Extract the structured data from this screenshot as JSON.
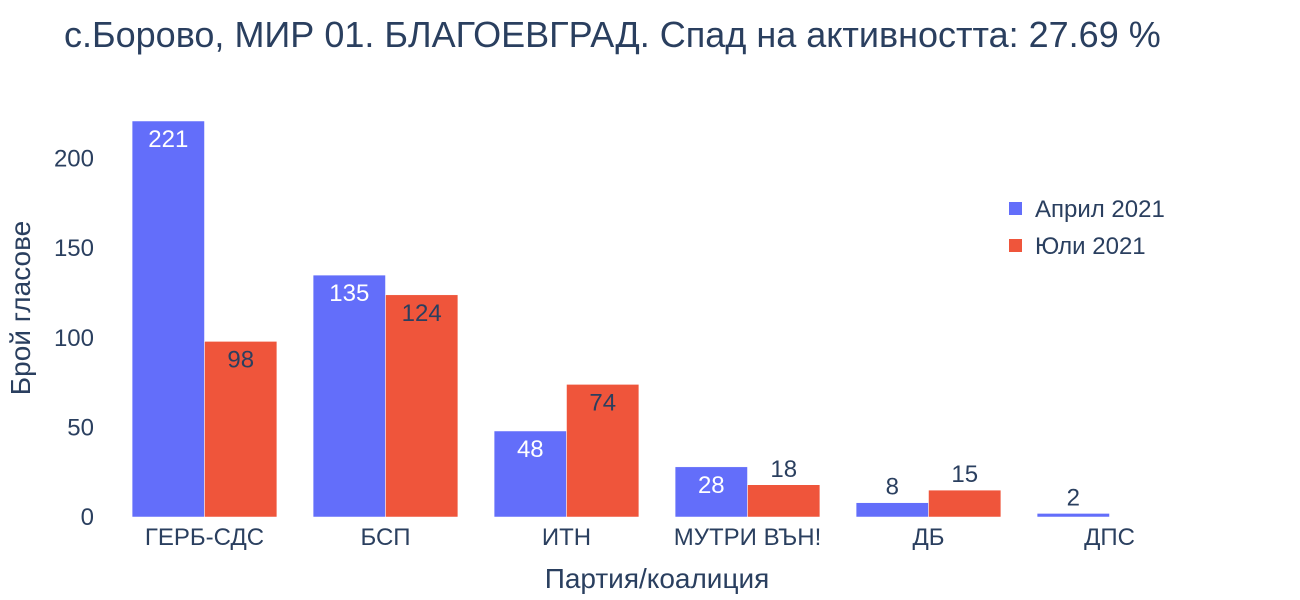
{
  "chart_data": {
    "type": "bar",
    "title": "с.Борово, МИР 01. БЛАГОЕВГРАД. Спад на активността: 27.69 %",
    "xlabel": "Партия/коалиция",
    "ylabel": "Брой гласове",
    "categories": [
      "ГЕРБ-СДС",
      "БСП",
      "ИТН",
      "МУТРИ ВЪН!",
      "ДБ",
      "ДПС"
    ],
    "series": [
      {
        "name": "Април 2021",
        "color": "#636efa",
        "values": [
          221,
          135,
          48,
          28,
          8,
          2
        ]
      },
      {
        "name": "Юли 2021",
        "color": "#ef553b",
        "values": [
          98,
          124,
          74,
          18,
          15,
          0
        ]
      }
    ],
    "ylim": [
      0,
      221
    ],
    "yticks": [
      0,
      50,
      100,
      150,
      200
    ],
    "grid": false,
    "legend": "top-right"
  }
}
